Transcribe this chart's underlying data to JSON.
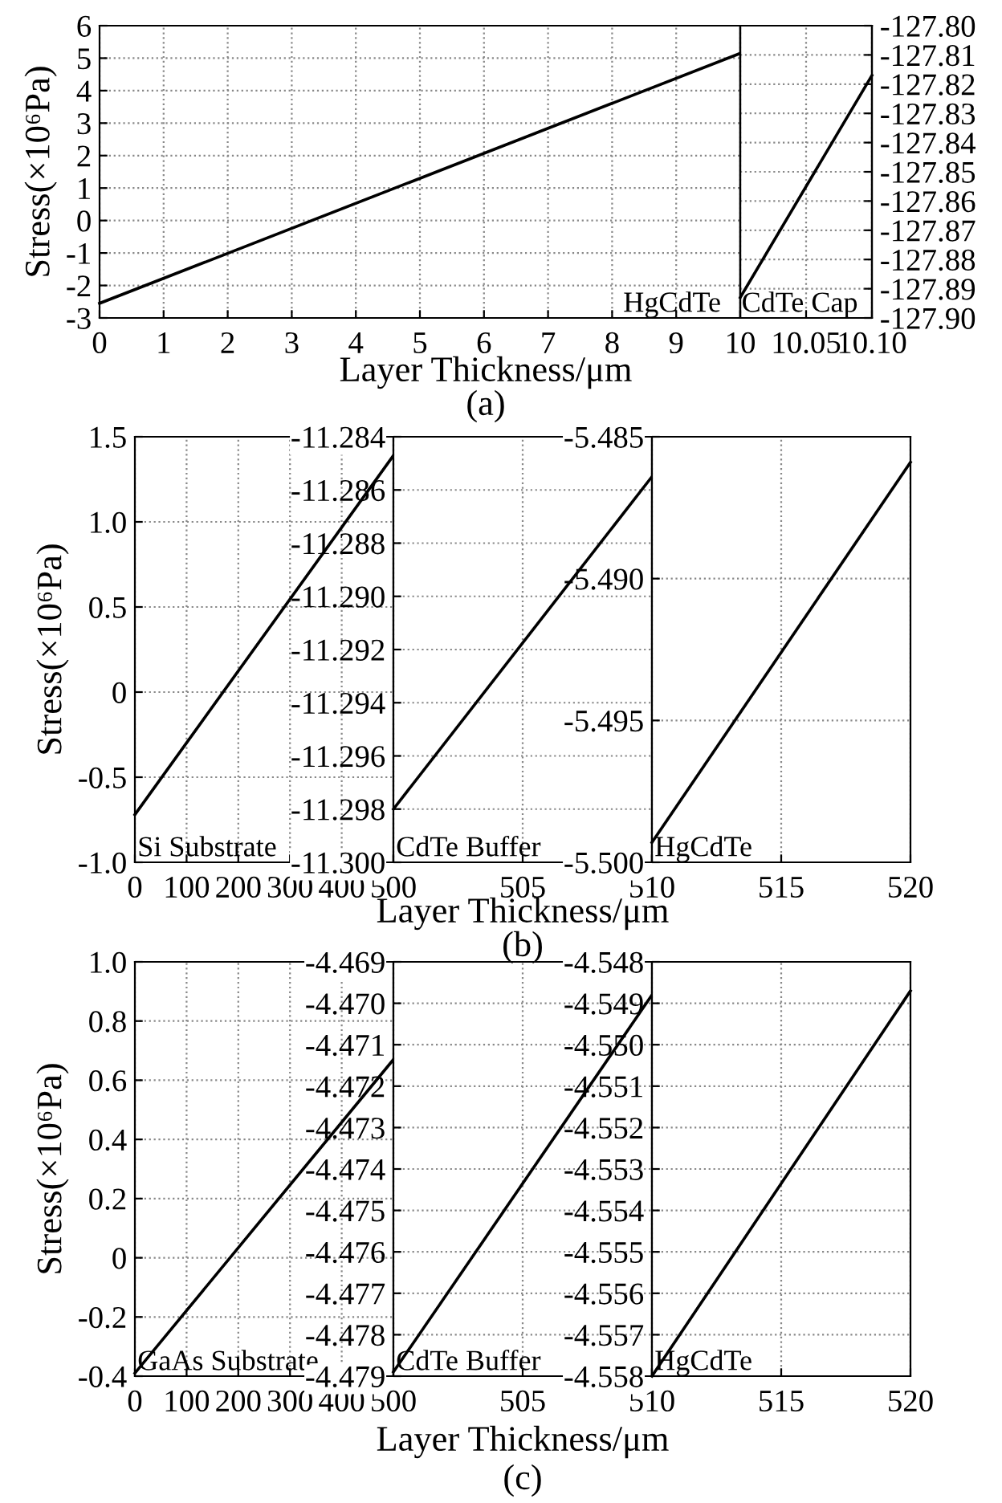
{
  "chart_data": [
    {
      "type": "line",
      "xlabel": "Layer Thickness/μm",
      "ylabel": "Stress(×10⁶Pa)",
      "annotations": [
        "HgCdTe",
        "(a)"
      ],
      "xlim": [
        0,
        10
      ],
      "ylim": [
        -3,
        6
      ],
      "xticks": [
        0,
        1,
        2,
        3,
        4,
        5,
        6,
        7,
        8,
        9,
        {
          "value": 10,
          "label": null
        }
      ],
      "yticks": [
        -3,
        -2,
        -1,
        0,
        1,
        2,
        3,
        4,
        5,
        6
      ],
      "grid": true,
      "series": [
        {
          "color": "#000000",
          "x": [
            0,
            10
          ],
          "values": [
            -2.55,
            5.15
          ]
        }
      ]
    },
    {
      "type": "line",
      "annotations": [
        "CdTe Cap"
      ],
      "xlim": [
        10,
        10.1
      ],
      "xticks": [
        10,
        10.05,
        {
          "value": 10.1,
          "label": "10.10"
        }
      ],
      "y2lim": [
        -127.9,
        -127.8
      ],
      "y2ticks": [
        {
          "value": -127.9,
          "label": "-127.90"
        },
        {
          "value": -127.89,
          "label": "-127.89"
        },
        {
          "value": -127.88,
          "label": "-127.88"
        },
        {
          "value": -127.87,
          "label": "-127.87"
        },
        {
          "value": -127.86,
          "label": "-127.86"
        },
        {
          "value": -127.85,
          "label": "-127.85"
        },
        {
          "value": -127.84,
          "label": "-127.84"
        },
        {
          "value": -127.83,
          "label": "-127.83"
        },
        {
          "value": -127.82,
          "label": "-127.82"
        },
        {
          "value": -127.81,
          "label": "-127.81"
        },
        {
          "value": -127.8,
          "label": "-127.80"
        }
      ],
      "grid": true,
      "series": [
        {
          "color": "#000000",
          "axis": "y2",
          "x": [
            10,
            10.1
          ],
          "values": [
            -127.893,
            -127.817
          ]
        }
      ]
    },
    {
      "type": "line",
      "xlabel": "Layer Thickness/μm",
      "ylabel": "Stress(×10⁶Pa)",
      "annotations": [
        "Si Substrate",
        "(b)"
      ],
      "xlim": [
        0,
        500
      ],
      "ylim": [
        -1,
        1.5
      ],
      "xticks": [
        0,
        100,
        200,
        300,
        400,
        {
          "value": 500,
          "label": null
        }
      ],
      "yticks": [
        {
          "value": -1,
          "label": "-1.0"
        },
        {
          "value": -0.5,
          "label": "-0.5"
        },
        0,
        {
          "value": 0.5,
          "label": "0.5"
        },
        {
          "value": 1,
          "label": "1.0"
        },
        {
          "value": 1.5,
          "label": "1.5"
        }
      ],
      "grid": true,
      "series": [
        {
          "color": "#000000",
          "x": [
            0,
            500
          ],
          "values": [
            -0.72,
            1.39
          ]
        }
      ]
    },
    {
      "type": "line",
      "annotations": [
        "CdTe Buffer"
      ],
      "xlim": [
        500,
        510
      ],
      "ylim": [
        -11.3,
        -11.284
      ],
      "xticks": [
        500,
        505,
        510
      ],
      "yticks": [
        {
          "value": -11.3,
          "label": "-11.300"
        },
        {
          "value": -11.298,
          "label": "-11.298"
        },
        {
          "value": -11.296,
          "label": "-11.296"
        },
        {
          "value": -11.294,
          "label": "-11.294"
        },
        {
          "value": -11.292,
          "label": "-11.292"
        },
        {
          "value": -11.29,
          "label": "-11.290"
        },
        {
          "value": -11.288,
          "label": "-11.288"
        },
        {
          "value": -11.286,
          "label": "-11.286"
        },
        {
          "value": -11.284,
          "label": "-11.284"
        }
      ],
      "grid": true,
      "series": [
        {
          "color": "#000000",
          "x": [
            500,
            510
          ],
          "values": [
            -11.298,
            -11.2855
          ]
        }
      ]
    },
    {
      "type": "line",
      "annotations": [
        "HgCdTe"
      ],
      "xlim": [
        510,
        520
      ],
      "ylim": [
        -5.5,
        -5.485
      ],
      "xticks": [
        {
          "value": 510,
          "label": null
        },
        515,
        520
      ],
      "yticks": [
        {
          "value": -5.5,
          "label": "-5.500"
        },
        {
          "value": -5.495,
          "label": "-5.495"
        },
        {
          "value": -5.49,
          "label": "-5.490"
        },
        {
          "value": -5.485,
          "label": "-5.485"
        }
      ],
      "grid": true,
      "series": [
        {
          "color": "#000000",
          "x": [
            510,
            520
          ],
          "values": [
            -5.4993,
            -5.4859
          ]
        }
      ]
    },
    {
      "type": "line",
      "xlabel": "Layer Thickness/μm",
      "ylabel": "Stress(×10⁶Pa)",
      "annotations": [
        "GaAs Substrate",
        "(c)"
      ],
      "xlim": [
        0,
        500
      ],
      "ylim": [
        -0.4,
        1
      ],
      "xticks": [
        0,
        100,
        200,
        300,
        400,
        {
          "value": 500,
          "label": null
        }
      ],
      "yticks": [
        {
          "value": -0.4,
          "label": "-0.4"
        },
        {
          "value": -0.2,
          "label": "-0.2"
        },
        0,
        {
          "value": 0.2,
          "label": "0.2"
        },
        {
          "value": 0.4,
          "label": "0.4"
        },
        {
          "value": 0.6,
          "label": "0.6"
        },
        {
          "value": 0.8,
          "label": "0.8"
        },
        {
          "value": 1,
          "label": "1.0"
        }
      ],
      "grid": true,
      "series": [
        {
          "color": "#000000",
          "x": [
            0,
            500
          ],
          "values": [
            -0.39,
            0.67
          ]
        }
      ]
    },
    {
      "type": "line",
      "annotations": [
        "CdTe Buffer"
      ],
      "xlim": [
        500,
        510
      ],
      "ylim": [
        -4.479,
        -4.469
      ],
      "xticks": [
        500,
        505,
        510
      ],
      "yticks": [
        {
          "value": -4.479,
          "label": "-4.479"
        },
        {
          "value": -4.478,
          "label": "-4.478"
        },
        {
          "value": -4.477,
          "label": "-4.477"
        },
        {
          "value": -4.476,
          "label": "-4.476"
        },
        {
          "value": -4.475,
          "label": "-4.475"
        },
        {
          "value": -4.474,
          "label": "-4.474"
        },
        {
          "value": -4.473,
          "label": "-4.473"
        },
        {
          "value": -4.472,
          "label": "-4.472"
        },
        {
          "value": -4.471,
          "label": "-4.471"
        },
        {
          "value": -4.47,
          "label": "-4.470"
        },
        {
          "value": -4.469,
          "label": "-4.469"
        }
      ],
      "grid": true,
      "series": [
        {
          "color": "#000000",
          "x": [
            500,
            510
          ],
          "values": [
            -4.4789,
            -4.4698
          ]
        }
      ]
    },
    {
      "type": "line",
      "annotations": [
        "HgCdTe"
      ],
      "xlim": [
        510,
        520
      ],
      "ylim": [
        -4.558,
        -4.548
      ],
      "xticks": [
        {
          "value": 510,
          "label": null
        },
        515,
        520
      ],
      "yticks": [
        {
          "value": -4.558,
          "label": "-4.558"
        },
        {
          "value": -4.557,
          "label": "-4.557"
        },
        {
          "value": -4.556,
          "label": "-4.556"
        },
        {
          "value": -4.555,
          "label": "-4.555"
        },
        {
          "value": -4.554,
          "label": "-4.554"
        },
        {
          "value": -4.553,
          "label": "-4.553"
        },
        {
          "value": -4.552,
          "label": "-4.552"
        },
        {
          "value": -4.551,
          "label": "-4.551"
        },
        {
          "value": -4.55,
          "label": "-4.550"
        },
        {
          "value": -4.549,
          "label": "-4.549"
        },
        {
          "value": -4.548,
          "label": "-4.548"
        }
      ],
      "grid": true,
      "series": [
        {
          "color": "#000000",
          "x": [
            510,
            520
          ],
          "values": [
            -4.558,
            -4.5487
          ]
        }
      ]
    }
  ]
}
